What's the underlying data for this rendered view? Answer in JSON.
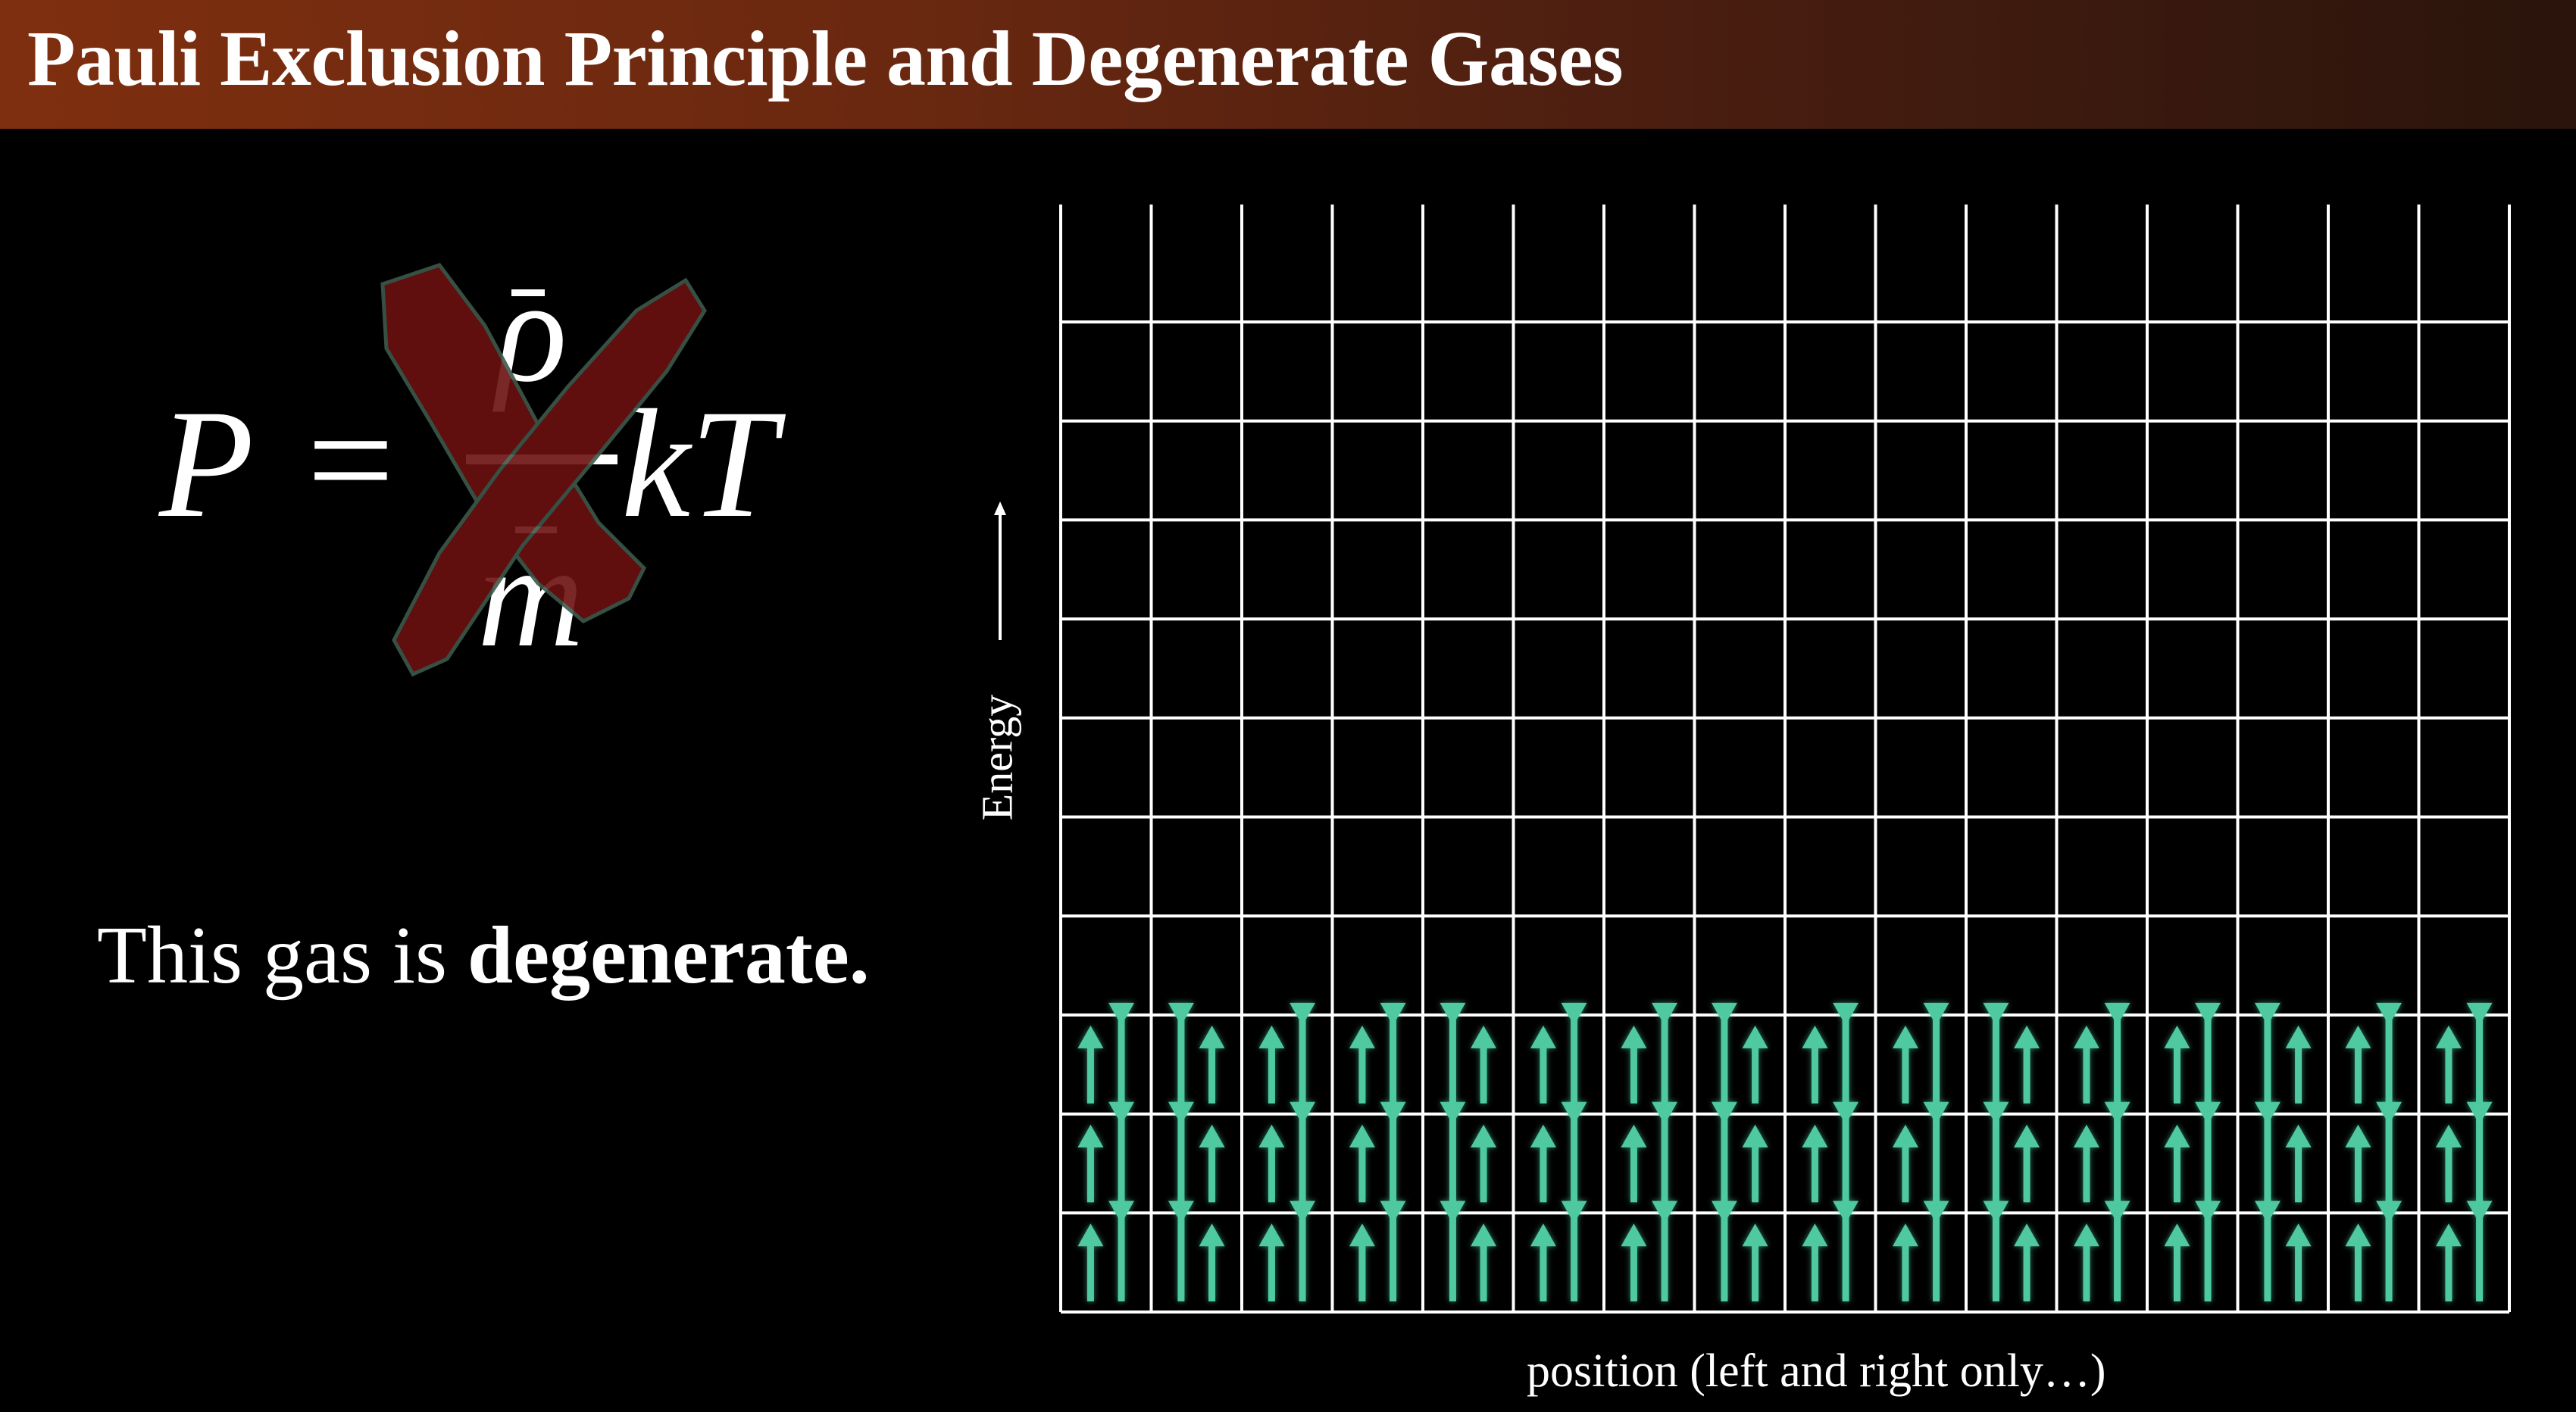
{
  "title": "Pauli Exclusion Principle and Degenerate Gases",
  "equation": {
    "lhs": "P",
    "equals": "=",
    "numerator": "ρ",
    "denominator": "m",
    "rhs": "kT",
    "crossed_out": true
  },
  "statement": {
    "text": "This gas is ",
    "bold": "degenerate."
  },
  "axes": {
    "y_label": "Energy",
    "x_label": "position (left and right only…)"
  },
  "grid": {
    "columns": 16,
    "rows": 11,
    "filled_rows_from_bottom": 3,
    "cell_contents": "one spin-up and one spin-down electron per state",
    "arrow_color": "#4ec9a0"
  },
  "colors": {
    "title_bar_start": "#7e2f0f",
    "cross": "#6b1010",
    "background": "#000000"
  }
}
